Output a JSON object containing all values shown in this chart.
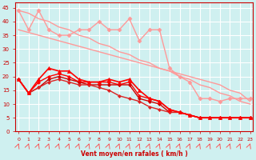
{
  "xlabel": "Vent moyen/en rafales ( km/h )",
  "background_color": "#cff0f0",
  "grid_color": "#ffffff",
  "x_values": [
    0,
    1,
    2,
    3,
    4,
    5,
    6,
    7,
    8,
    9,
    10,
    11,
    12,
    13,
    14,
    15,
    16,
    17,
    18,
    19,
    20,
    21,
    22,
    23
  ],
  "lines": [
    {
      "y": [
        44,
        37,
        44,
        37,
        35,
        35,
        37,
        37,
        40,
        37,
        37,
        41,
        33,
        37,
        37,
        23,
        20,
        18,
        12,
        12,
        11,
        12,
        12,
        12
      ],
      "color": "#ff9999",
      "marker": "D",
      "markersize": 2.5,
      "linewidth": 1.0,
      "zorder": 3
    },
    {
      "y": [
        44,
        43,
        41,
        40,
        38,
        37,
        35,
        34,
        32,
        31,
        29,
        28,
        26,
        25,
        23,
        22,
        20,
        19,
        17,
        16,
        14,
        13,
        11,
        10
      ],
      "color": "#ff9999",
      "marker": null,
      "markersize": 0,
      "linewidth": 1.0,
      "zorder": 2
    },
    {
      "y": [
        37,
        36,
        35,
        34,
        33,
        32,
        31,
        30,
        29,
        28,
        27,
        26,
        25,
        24,
        23,
        22,
        21,
        20,
        19,
        18,
        17,
        15,
        14,
        11
      ],
      "color": "#ff9999",
      "marker": null,
      "markersize": 0,
      "linewidth": 1.0,
      "zorder": 2
    },
    {
      "y": [
        19,
        14,
        19,
        23,
        22,
        22,
        19,
        18,
        18,
        19,
        18,
        19,
        15,
        12,
        11,
        8,
        7,
        6,
        5,
        5,
        5,
        5,
        5,
        5
      ],
      "color": "#ff0000",
      "marker": "^",
      "markersize": 3,
      "linewidth": 1.2,
      "zorder": 5
    },
    {
      "y": [
        19,
        14,
        18,
        20,
        21,
        20,
        18,
        18,
        18,
        18,
        17,
        18,
        13,
        12,
        11,
        8,
        7,
        6,
        5,
        5,
        5,
        5,
        5,
        5
      ],
      "color": "#ff0000",
      "marker": "D",
      "markersize": 2.0,
      "linewidth": 1.0,
      "zorder": 4
    },
    {
      "y": [
        19,
        14,
        16,
        19,
        20,
        19,
        18,
        17,
        17,
        17,
        17,
        17,
        12,
        11,
        10,
        7,
        7,
        6,
        5,
        5,
        5,
        5,
        5,
        5
      ],
      "color": "#cc0000",
      "marker": "D",
      "markersize": 2.0,
      "linewidth": 1.0,
      "zorder": 4
    },
    {
      "y": [
        19,
        14,
        16,
        18,
        19,
        18,
        17,
        17,
        16,
        15,
        13,
        12,
        11,
        9,
        8,
        7,
        7,
        6,
        5,
        5,
        5,
        5,
        5,
        5
      ],
      "color": "#dd2222",
      "marker": "D",
      "markersize": 2.0,
      "linewidth": 1.0,
      "zorder": 4
    }
  ],
  "ylim": [
    0,
    47
  ],
  "yticks": [
    0,
    5,
    10,
    15,
    20,
    25,
    30,
    35,
    40,
    45
  ],
  "xlim": [
    -0.3,
    23.3
  ],
  "xticks": [
    0,
    1,
    2,
    3,
    4,
    5,
    6,
    7,
    8,
    9,
    10,
    11,
    12,
    13,
    14,
    15,
    16,
    17,
    18,
    19,
    20,
    21,
    22,
    23
  ]
}
